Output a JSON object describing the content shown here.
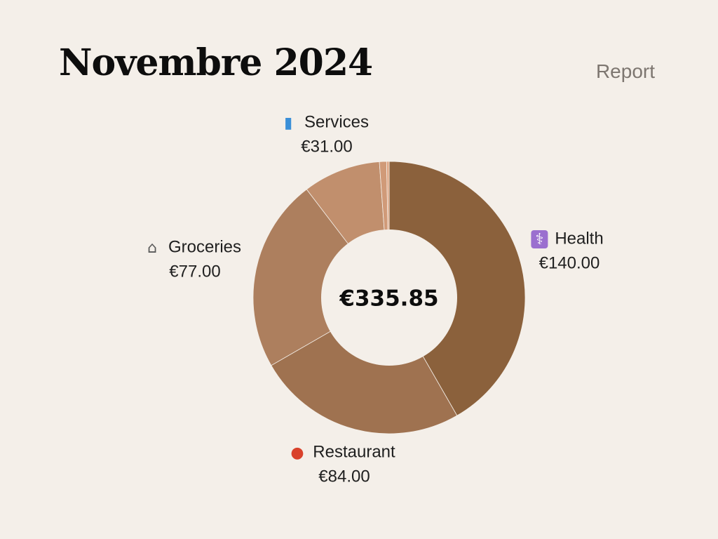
{
  "header": {
    "title": "Novembre 2024",
    "report_label": "Report"
  },
  "chart_data": {
    "type": "pie",
    "title": "Novembre 2024",
    "total_label": "€335.85",
    "total_value": 335.85,
    "slices": [
      {
        "name": "Health",
        "value": 140.0,
        "label": "€140.00",
        "icon": "medical-icon",
        "color": "#8b613c"
      },
      {
        "name": "Restaurant",
        "value": 84.0,
        "label": "€84.00",
        "icon": "spaghetti-icon",
        "color": "#9f7250"
      },
      {
        "name": "Groceries",
        "value": 77.0,
        "label": "€77.00",
        "icon": "shopping-cart-icon",
        "color": "#ad7f5e"
      },
      {
        "name": "Services",
        "value": 31.0,
        "label": "€31.00",
        "icon": "mobile-phone-icon",
        "color": "#c18f6d"
      },
      {
        "name": "",
        "value": 2.85,
        "label": "",
        "icon": "",
        "color": "#d09a78"
      },
      {
        "name": "",
        "value": 1.0,
        "label": "",
        "icon": "",
        "color": "#e0a684"
      }
    ]
  }
}
